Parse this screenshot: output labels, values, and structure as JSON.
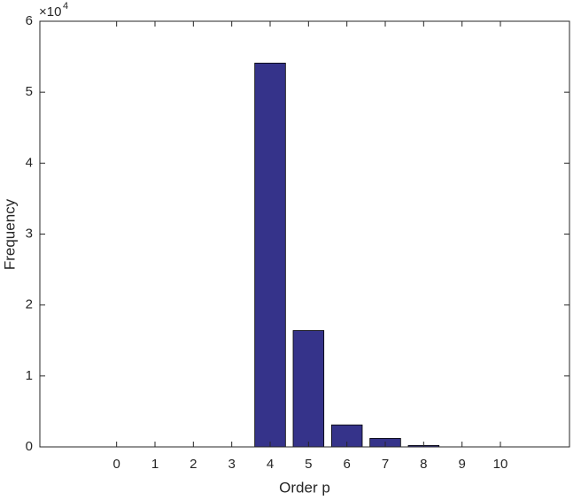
{
  "chart_data": {
    "type": "bar",
    "x": [
      0,
      1,
      2,
      3,
      4,
      5,
      6,
      7,
      8,
      9,
      10
    ],
    "values": [
      0,
      0,
      0,
      0,
      5.41,
      1.64,
      0.31,
      0.12,
      0.02,
      0,
      0
    ],
    "color": "#35338a",
    "edge_color": "#000000",
    "xlim": [
      -2,
      11.8
    ],
    "xticks": [
      0,
      1,
      2,
      3,
      4,
      5,
      6,
      7,
      8,
      9,
      10
    ],
    "ylim": [
      0,
      6
    ],
    "yticks": [
      0,
      1,
      2,
      3,
      4,
      5,
      6
    ],
    "y_exponent": {
      "base": "×10",
      "power": "4"
    },
    "xlabel": "Order p",
    "ylabel": "Frequency",
    "bar_width": 0.8,
    "grid": false
  }
}
